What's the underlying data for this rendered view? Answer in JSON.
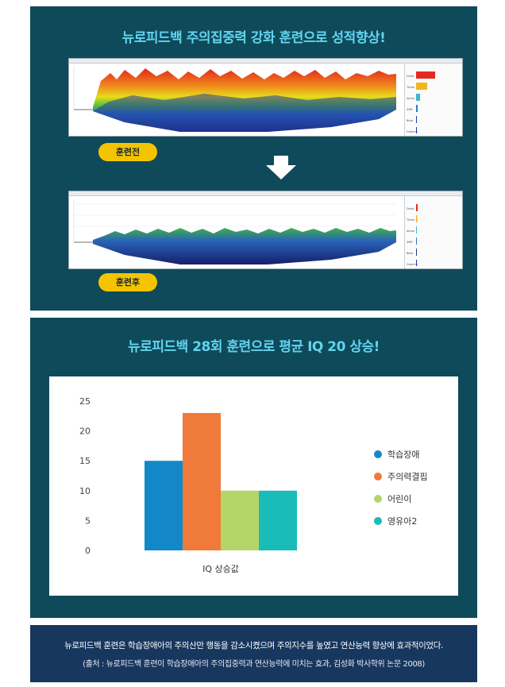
{
  "panel1": {
    "title": "뉴로피드백 주의집중력 강화 훈련으로 성적향상!",
    "before_label": "훈련전",
    "after_label": "훈련후",
    "band_names": [
      "Delta",
      "Theta",
      "Alpha",
      "SMR",
      "Beta",
      "Gamma"
    ]
  },
  "panel2": {
    "title": "뉴로피드백 28회 훈련으로 평균  IQ 20 상승!"
  },
  "chart_data": {
    "type": "bar",
    "categories": [
      "IQ 상승값"
    ],
    "series": [
      {
        "name": "학습장애",
        "values": [
          15
        ],
        "color": "#1288c8"
      },
      {
        "name": "주의력결핍",
        "values": [
          23
        ],
        "color": "#f07a3a"
      },
      {
        "name": "어린이",
        "values": [
          10
        ],
        "color": "#b3d56a"
      },
      {
        "name": "영유아2",
        "values": [
          10
        ],
        "color": "#19bcb8"
      }
    ],
    "xlabel": "IQ 상승값",
    "ylabel": "",
    "ylim": [
      0,
      25
    ],
    "yticks": [
      0,
      5,
      10,
      15,
      20,
      25
    ],
    "grid": false,
    "legend_position": "right"
  },
  "footer": {
    "line1": "뉴로피드백 훈련은 학습장애아의 주의산만 행동을 감소시켰으며 주의지수를 높였고 연산능력 향상에 효과적이었다.",
    "line2": "(출처 : 뉴로피드백 훈련이 학습장애아의 주의집중력과 연산능력에 미치는 효과, 김성화 박사학위 논문 2008)"
  }
}
